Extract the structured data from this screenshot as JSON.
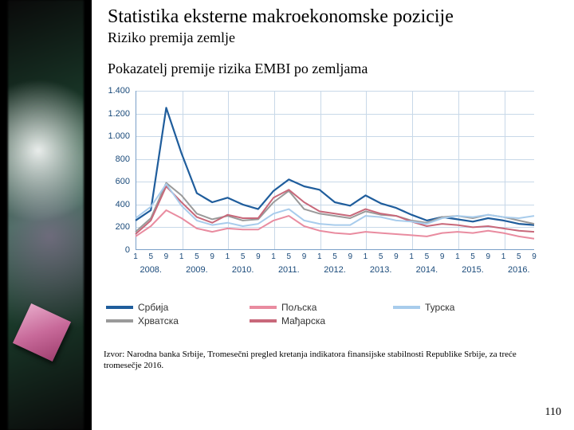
{
  "title": "Statistika eksterne makroekonomske pozicije",
  "subtitle": "Riziko premija zemlje",
  "chart_title": "Pokazatelj premije rizika EMBI po zemljama",
  "source": "Izvor: Narodna banka Srbije, Tromesečni pregled kretanja indikatora finansijske stabilnosti Republike Srbije, za treće tromesečje 2016.",
  "page_number": "110",
  "chart": {
    "type": "line",
    "background_color": "#ffffff",
    "grid_color": "#c8d8e8",
    "axis_color": "#7aa0c8",
    "tick_font_color": "#1a4a7a",
    "tick_fontsize": 11,
    "ylim": [
      0,
      1400
    ],
    "ytick_step": 200,
    "yticks": [
      0,
      200,
      400,
      600,
      800,
      1000,
      1200,
      1400
    ],
    "ytick_labels": [
      "0",
      "200",
      "400",
      "600",
      "800",
      "1.000",
      "1.200",
      "1.400"
    ],
    "years": [
      "2008.",
      "2009.",
      "2010.",
      "2011.",
      "2012.",
      "2013.",
      "2014.",
      "2015.",
      "2016."
    ],
    "x_minor_ticks": [
      "1",
      "5",
      "9"
    ],
    "n_points": 27,
    "series": [
      {
        "name": "Србија",
        "label": "Србија",
        "color": "#1f5d9c",
        "line_width": 2.2,
        "values": [
          260,
          350,
          1250,
          850,
          500,
          420,
          460,
          400,
          360,
          520,
          620,
          560,
          530,
          420,
          390,
          480,
          410,
          370,
          310,
          260,
          290,
          270,
          250,
          280,
          260,
          230,
          220
        ]
      },
      {
        "name": "Хрватска",
        "label": "Хрватска",
        "color": "#9a9a9a",
        "line_width": 2,
        "values": [
          160,
          280,
          590,
          480,
          320,
          270,
          300,
          260,
          270,
          420,
          520,
          360,
          320,
          300,
          280,
          340,
          310,
          300,
          260,
          240,
          290,
          300,
          280,
          310,
          290,
          260,
          230
        ]
      },
      {
        "name": "Пољска",
        "label": "Пољска",
        "color": "#e98ca0",
        "line_width": 2,
        "values": [
          120,
          210,
          350,
          280,
          190,
          160,
          190,
          180,
          180,
          260,
          300,
          210,
          170,
          150,
          140,
          160,
          150,
          140,
          130,
          120,
          150,
          160,
          150,
          170,
          150,
          120,
          100
        ]
      },
      {
        "name": "Мађарска",
        "label": "Мађарска",
        "color": "#c8687a",
        "line_width": 2,
        "values": [
          140,
          260,
          560,
          420,
          290,
          240,
          310,
          280,
          280,
          460,
          530,
          420,
          340,
          320,
          300,
          360,
          320,
          300,
          250,
          210,
          230,
          220,
          200,
          210,
          190,
          170,
          160
        ]
      },
      {
        "name": "Турска",
        "label": "Турска",
        "color": "#a8ccec",
        "line_width": 2,
        "values": [
          280,
          380,
          580,
          390,
          260,
          220,
          240,
          210,
          230,
          320,
          360,
          260,
          230,
          220,
          220,
          300,
          290,
          260,
          250,
          230,
          280,
          300,
          290,
          310,
          290,
          280,
          300
        ]
      }
    ],
    "legend": {
      "rows": [
        [
          {
            "label": "Србија",
            "color": "#1f5d9c"
          },
          {
            "label": "Пољска",
            "color": "#e98ca0"
          },
          {
            "label": "Турска",
            "color": "#a8ccec"
          }
        ],
        [
          {
            "label": "Хрватска",
            "color": "#9a9a9a"
          },
          {
            "label": "Мађарска",
            "color": "#c8687a"
          }
        ]
      ],
      "fontsize": 12,
      "swatch_width": 34,
      "swatch_height": 4
    }
  }
}
